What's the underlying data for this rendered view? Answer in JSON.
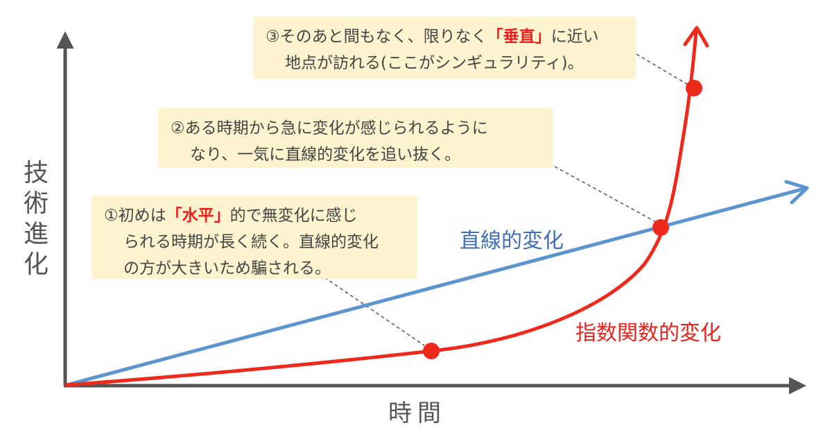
{
  "axes": {
    "y_label": [
      "技",
      "術",
      "進",
      "化"
    ],
    "x_label": "時間"
  },
  "series": {
    "linear_label": "直線的変化",
    "exponential_label": "指数関数的変化",
    "linear_color": "#5b94cf",
    "exponential_color": "#ee2a1c"
  },
  "notes": [
    {
      "num": "①",
      "parts": [
        "初めは",
        "「水平」",
        "的で無変化に感じ"
      ],
      "line2": "られる時期が長く続く。直線的変化",
      "line3": "の方が大きいため騙される。"
    },
    {
      "line1": "②ある時期から急に変化が感じられるように",
      "line2": "なり、一気に直線的変化を追い抜く。"
    },
    {
      "parts": [
        "③そのあと間もなく、限りなく",
        "「垂直」",
        "に近い"
      ],
      "line2": "地点が訪れる(ここがシンギュラリティ)。"
    }
  ]
}
